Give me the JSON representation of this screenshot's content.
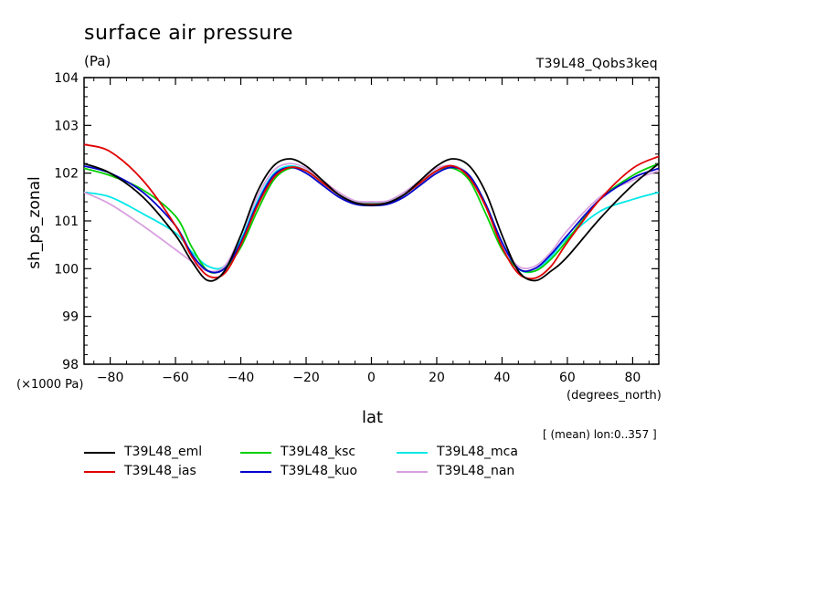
{
  "header": {
    "title": "surface air pressure",
    "units": "(Pa)",
    "experiment": "T39L48_Qobs3keq"
  },
  "footer": {
    "x_multiplier": "(×1000 Pa)",
    "x_units": "(degrees_north)",
    "mean_note": "[ (mean) lon:0..357 ]"
  },
  "chart_data": {
    "type": "line",
    "title": "surface air pressure",
    "xlabel": "lat",
    "ylabel": "sh_ps_zonal",
    "xlim": [
      -88,
      88
    ],
    "ylim": [
      98,
      104
    ],
    "xticks": [
      -80,
      -60,
      -40,
      -20,
      0,
      20,
      40,
      60,
      80
    ],
    "xtick_labels": [
      "−80",
      "−60",
      "−40",
      "−20",
      "0",
      "20",
      "40",
      "60",
      "80"
    ],
    "yticks": [
      98,
      99,
      100,
      101,
      102,
      103,
      104
    ],
    "grid": false,
    "legend_position": "bottom",
    "x": [
      -88,
      -80,
      -70,
      -60,
      -55,
      -50,
      -45,
      -40,
      -35,
      -30,
      -25,
      -20,
      -15,
      -10,
      -5,
      0,
      5,
      10,
      15,
      20,
      25,
      30,
      35,
      40,
      45,
      50,
      55,
      60,
      70,
      80,
      88
    ],
    "series": [
      {
        "name": "T39L48_eml",
        "color": "#000000",
        "values": [
          102.2,
          102.0,
          101.5,
          100.7,
          100.15,
          99.75,
          99.95,
          100.7,
          101.6,
          102.15,
          102.3,
          102.15,
          101.85,
          101.55,
          101.38,
          101.33,
          101.38,
          101.55,
          101.85,
          102.15,
          102.3,
          102.15,
          101.6,
          100.7,
          99.95,
          99.75,
          99.95,
          100.25,
          101.05,
          101.75,
          102.2
        ]
      },
      {
        "name": "T39L48_ias",
        "color": "#e00000",
        "values": [
          102.6,
          102.45,
          101.85,
          100.9,
          100.25,
          99.85,
          99.9,
          100.5,
          101.3,
          101.9,
          102.12,
          102.05,
          101.8,
          101.55,
          101.38,
          101.35,
          101.38,
          101.55,
          101.8,
          102.05,
          102.15,
          101.9,
          101.3,
          100.45,
          99.9,
          99.8,
          100.05,
          100.55,
          101.45,
          102.1,
          102.35
        ]
      },
      {
        "name": "T39L48_ksc",
        "color": "#00d000",
        "values": [
          102.1,
          101.95,
          101.65,
          101.1,
          100.45,
          99.95,
          100.0,
          100.45,
          101.2,
          101.85,
          102.1,
          102.05,
          101.8,
          101.55,
          101.38,
          101.35,
          101.38,
          101.55,
          101.8,
          102.05,
          102.1,
          101.85,
          101.15,
          100.4,
          100.0,
          99.95,
          100.2,
          100.6,
          101.45,
          101.95,
          102.2
        ]
      },
      {
        "name": "T39L48_kuo",
        "color": "#0000cc",
        "values": [
          102.15,
          102.0,
          101.6,
          100.9,
          100.3,
          99.95,
          100.0,
          100.55,
          101.35,
          101.95,
          102.12,
          102.0,
          101.75,
          101.5,
          101.35,
          101.32,
          101.35,
          101.5,
          101.75,
          102.0,
          102.12,
          101.95,
          101.35,
          100.55,
          100.0,
          100.0,
          100.3,
          100.7,
          101.45,
          101.9,
          102.1
        ]
      },
      {
        "name": "T39L48_mca",
        "color": "#00e8e8",
        "values": [
          101.6,
          101.5,
          101.15,
          100.75,
          100.35,
          100.05,
          100.05,
          100.6,
          101.4,
          101.98,
          102.15,
          102.05,
          101.8,
          101.55,
          101.4,
          101.37,
          101.4,
          101.55,
          101.8,
          102.05,
          102.15,
          101.95,
          101.35,
          100.55,
          100.0,
          99.95,
          100.25,
          100.65,
          101.2,
          101.45,
          101.6
        ]
      },
      {
        "name": "T39L48_nan",
        "color": "#d8a0e0",
        "values": [
          101.6,
          101.35,
          100.9,
          100.4,
          100.15,
          99.95,
          100.05,
          100.7,
          101.5,
          102.05,
          102.2,
          102.1,
          101.85,
          101.6,
          101.42,
          101.4,
          101.42,
          101.6,
          101.85,
          102.1,
          102.15,
          101.95,
          101.3,
          100.5,
          100.05,
          100.05,
          100.35,
          100.8,
          101.5,
          101.85,
          102.05
        ]
      }
    ]
  }
}
